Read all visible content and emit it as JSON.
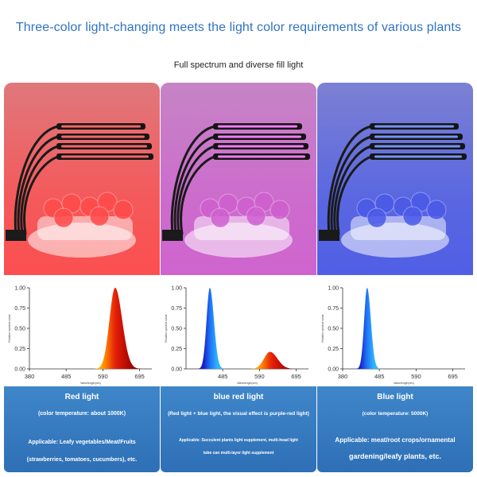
{
  "header": {
    "title": "Three-color light-changing meets the light color requirements of various plants",
    "subtitle": "Full spectrum and diverse fill light"
  },
  "panels": [
    {
      "name": "Red light",
      "detail": "(color temperature: about 1000K)",
      "applicable_1": "Applicable: Leafy vegetables/Meat/Fruits",
      "applicable_2": "(strawberries, tomatoes, cucumbers), etc.",
      "photo_tint": "#ff4a4a",
      "led_color": "#ff6a6a"
    },
    {
      "name": "blue red light",
      "detail": "(Red light + blue light, the visual effect is purple-red light)",
      "applicable_1": "Applicable: Succulent plants light supplement, multi-head light",
      "applicable_2": "tube can multi-layer light supplement",
      "photo_tint": "#d060d0",
      "led_color": "#ff80ff"
    },
    {
      "name": "Blue light",
      "detail": "(color temperature: 5000K)",
      "applicable_1": "Applicable: meat/root crops/ornamental",
      "applicable_2": "gardening/leafy plants, etc.",
      "photo_tint": "#4a5ae8",
      "led_color": "#7a9aff"
    }
  ],
  "chart_data": [
    {
      "type": "area",
      "title": "",
      "xlabel": "Wavelength(nm)",
      "ylabel": "Relative spectral value",
      "xlim": [
        380,
        730
      ],
      "ylim": [
        0,
        1.0
      ],
      "x_ticks": [
        "380",
        "485",
        "590",
        "695"
      ],
      "y_ticks": [
        "0.00",
        "0.25",
        "0.50",
        "0.75",
        "1.00"
      ],
      "series": [
        {
          "peak_nm": 625,
          "peak_value": 1.0,
          "fwhm_nm": 38
        }
      ]
    },
    {
      "type": "area",
      "title": "",
      "xlabel": "Wavelength(nm)",
      "ylabel": "Relative spectral value",
      "xlim": [
        380,
        730
      ],
      "ylim": [
        0,
        1.0
      ],
      "x_ticks": [
        "485",
        "590",
        "695"
      ],
      "y_ticks": [
        "0.00",
        "0.25",
        "0.50",
        "0.75",
        "1.00"
      ],
      "series": [
        {
          "peak_nm": 448,
          "peak_value": 1.0,
          "fwhm_nm": 22
        },
        {
          "peak_nm": 620,
          "peak_value": 0.21,
          "fwhm_nm": 40
        }
      ]
    },
    {
      "type": "area",
      "title": "",
      "xlabel": "Wavelength(nm)",
      "ylabel": "Relative spectral value",
      "xlim": [
        380,
        730
      ],
      "ylim": [
        0,
        1.0
      ],
      "x_ticks": [
        "380",
        "485",
        "590",
        "695"
      ],
      "y_ticks": [
        "0.00",
        "0.25",
        "0.50",
        "0.75",
        "1.00"
      ],
      "series": [
        {
          "peak_nm": 450,
          "peak_value": 1.0,
          "fwhm_nm": 20
        }
      ]
    }
  ]
}
